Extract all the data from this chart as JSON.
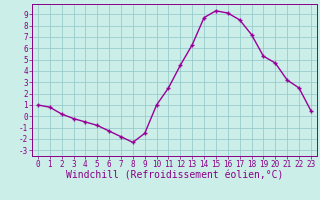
{
  "x": [
    0,
    1,
    2,
    3,
    4,
    5,
    6,
    7,
    8,
    9,
    10,
    11,
    12,
    13,
    14,
    15,
    16,
    17,
    18,
    19,
    20,
    21,
    22,
    23
  ],
  "y": [
    1.0,
    0.8,
    0.2,
    -0.2,
    -0.5,
    -0.8,
    -1.3,
    -1.8,
    -2.3,
    -1.5,
    1.0,
    2.5,
    4.5,
    6.3,
    8.7,
    9.3,
    9.1,
    8.5,
    7.2,
    5.3,
    4.7,
    3.2,
    2.5,
    0.5
  ],
  "line_color": "#990099",
  "marker": "+",
  "marker_size": 3,
  "linewidth": 1.0,
  "bg_color": "#cceee8",
  "grid_color": "#99cccc",
  "xlabel": "Windchill (Refroidissement éolien,°C)",
  "xlim": [
    -0.5,
    23.5
  ],
  "ylim": [
    -3.5,
    9.9
  ],
  "yticks": [
    -3,
    -2,
    -1,
    0,
    1,
    2,
    3,
    4,
    5,
    6,
    7,
    8,
    9
  ],
  "xticks": [
    0,
    1,
    2,
    3,
    4,
    5,
    6,
    7,
    8,
    9,
    10,
    11,
    12,
    13,
    14,
    15,
    16,
    17,
    18,
    19,
    20,
    21,
    22,
    23
  ],
  "tick_color": "#880088",
  "tick_fontsize": 5.5,
  "xlabel_fontsize": 7.0,
  "spine_color": "#880088",
  "markeredgewidth": 1.0
}
